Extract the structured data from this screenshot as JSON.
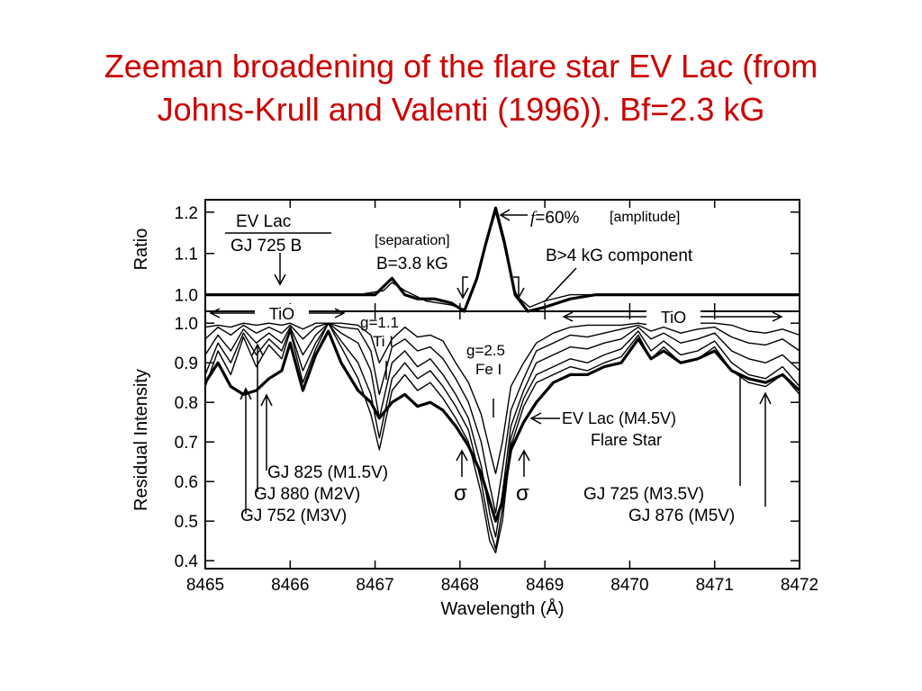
{
  "slide": {
    "title_line1": "Zeeman broadening of the flare star EV Lac (from",
    "title_line2": "Johns-Krull and Valenti (1996)). Bf=2.3 kG",
    "title_color": "#cc0000"
  },
  "chart_data": [
    {
      "type": "line",
      "panel": "top",
      "ylabel": "Ratio",
      "xlim": [
        8465,
        8472
      ],
      "ylim": [
        0.96,
        1.23
      ],
      "yticks": [
        "1.0",
        "1.1",
        "1.2"
      ],
      "ytick_values": [
        1.0,
        1.1,
        1.2
      ],
      "legend": {
        "numerator": "EV Lac",
        "denominator": "GJ 725 B"
      },
      "series": [
        {
          "x": [
            8465.0,
            8465.5,
            8466.0,
            8466.5,
            8467.0,
            8467.1,
            8467.2,
            8467.35,
            8467.5,
            8467.7,
            8467.9,
            8468.05,
            8468.2,
            8468.3,
            8468.42,
            8468.52,
            8468.65,
            8468.8,
            8469.0,
            8469.3,
            8469.6,
            8470.0,
            8470.5,
            8471.0,
            8471.5,
            8472.0
          ],
          "y": [
            1.0,
            1.0,
            1.0,
            1.0,
            1.0,
            1.02,
            1.04,
            1.0,
            0.99,
            0.99,
            0.98,
            0.955,
            1.04,
            1.12,
            1.21,
            1.13,
            1.0,
            0.955,
            0.97,
            0.99,
            1.0,
            1.0,
            1.0,
            1.0,
            1.0,
            1.0
          ]
        },
        {
          "x": [
            8465.0,
            8466.0,
            8466.8,
            8467.1,
            8467.2,
            8467.35,
            8467.6,
            8467.9,
            8468.05,
            8468.2,
            8468.3,
            8468.42,
            8468.52,
            8468.65,
            8468.82,
            8469.0,
            8469.3,
            8470.0,
            8472.0
          ],
          "y": [
            1.0,
            1.0,
            1.0,
            1.01,
            1.03,
            1.01,
            0.985,
            0.975,
            0.965,
            1.04,
            1.12,
            1.2,
            1.12,
            1.0,
            0.97,
            0.985,
            1.0,
            1.0,
            1.0
          ]
        }
      ],
      "annotations": [
        {
          "text": "[separation]"
        },
        {
          "text": "B=3.8 kG"
        },
        {
          "text": "=60%",
          "italic_prefix": "f"
        },
        {
          "text": "[amplitude]"
        },
        {
          "text": "B>4 kG component"
        }
      ]
    },
    {
      "type": "line",
      "panel": "bottom",
      "xlabel": "Wavelength  (Å)",
      "ylabel": "Residual Intensity",
      "xlim": [
        8465,
        8472
      ],
      "ylim": [
        0.38,
        1.03
      ],
      "xticks": [
        "8465",
        "8466",
        "8467",
        "8468",
        "8469",
        "8470",
        "8471",
        "8472"
      ],
      "xtick_values": [
        8465,
        8466,
        8467,
        8468,
        8469,
        8470,
        8471,
        8472
      ],
      "yticks": [
        "0.4",
        "0.5",
        "0.6",
        "0.7",
        "0.8",
        "0.9",
        "1.0"
      ],
      "ytick_values": [
        0.4,
        0.5,
        0.6,
        0.7,
        0.8,
        0.9,
        1.0
      ],
      "series": [
        {
          "name": "GJ 825 (M1.5V)",
          "x": [
            8465.0,
            8465.15,
            8465.3,
            8465.45,
            8465.6,
            8465.75,
            8465.9,
            8466.0,
            8466.15,
            8466.3,
            8466.45,
            8466.6,
            8466.8,
            8466.95,
            8467.05,
            8467.2,
            8467.35,
            8467.5,
            8467.65,
            8467.8,
            8467.95,
            8468.1,
            8468.25,
            8468.35,
            8468.42,
            8468.5,
            8468.6,
            8468.75,
            8468.9,
            8469.1,
            8469.3,
            8469.5,
            8469.7,
            8469.9,
            8470.1,
            8470.25,
            8470.4,
            8470.6,
            8470.8,
            8471.0,
            8471.2,
            8471.4,
            8471.6,
            8471.8,
            8472.0
          ],
          "y": [
            0.99,
            0.995,
            0.99,
            1.0,
            0.995,
            1.0,
            0.995,
            1.0,
            0.985,
            1.0,
            1.0,
            1.0,
            0.995,
            0.97,
            0.9,
            0.96,
            0.99,
            0.965,
            0.97,
            0.955,
            0.9,
            0.85,
            0.77,
            0.68,
            0.62,
            0.7,
            0.84,
            0.9,
            0.95,
            0.975,
            0.99,
            0.995,
            0.995,
            0.995,
            1.0,
            0.995,
            1.0,
            0.995,
            1.0,
            1.0,
            0.995,
            0.98,
            0.975,
            0.985,
            0.97
          ]
        },
        {
          "name": "GJ 880 (M2V)",
          "x": [
            8465.0,
            8465.15,
            8465.3,
            8465.45,
            8465.6,
            8465.75,
            8465.9,
            8466.0,
            8466.15,
            8466.3,
            8466.45,
            8466.6,
            8466.8,
            8466.95,
            8467.05,
            8467.2,
            8467.35,
            8467.5,
            8467.65,
            8467.8,
            8467.95,
            8468.1,
            8468.25,
            8468.35,
            8468.42,
            8468.5,
            8468.6,
            8468.75,
            8468.9,
            8469.1,
            8469.3,
            8469.5,
            8469.7,
            8469.9,
            8470.1,
            8470.25,
            8470.4,
            8470.6,
            8470.8,
            8471.0,
            8471.2,
            8471.4,
            8471.6,
            8471.8,
            8472.0
          ],
          "y": [
            0.96,
            0.99,
            0.97,
            0.995,
            0.975,
            0.99,
            0.975,
            0.995,
            0.96,
            0.99,
            1.0,
            0.99,
            0.985,
            0.93,
            0.82,
            0.94,
            0.96,
            0.93,
            0.94,
            0.91,
            0.86,
            0.8,
            0.7,
            0.59,
            0.52,
            0.63,
            0.78,
            0.86,
            0.93,
            0.95,
            0.97,
            0.965,
            0.975,
            0.985,
            0.995,
            0.98,
            0.99,
            0.975,
            0.985,
            0.99,
            0.965,
            0.95,
            0.945,
            0.96,
            0.93
          ]
        },
        {
          "name": "GJ 752 (M3V)",
          "x": [
            8465.0,
            8465.15,
            8465.3,
            8465.45,
            8465.6,
            8465.75,
            8465.9,
            8466.0,
            8466.15,
            8466.3,
            8466.45,
            8466.6,
            8466.8,
            8466.95,
            8467.05,
            8467.2,
            8467.35,
            8467.5,
            8467.65,
            8467.8,
            8467.95,
            8468.1,
            8468.25,
            8468.35,
            8468.42,
            8468.5,
            8468.6,
            8468.75,
            8468.9,
            8469.1,
            8469.3,
            8469.5,
            8469.7,
            8469.9,
            8470.1,
            8470.25,
            8470.4,
            8470.6,
            8470.8,
            8471.0,
            8471.2,
            8471.4,
            8471.6,
            8471.8,
            8472.0
          ],
          "y": [
            0.92,
            0.97,
            0.93,
            0.985,
            0.95,
            0.975,
            0.95,
            0.99,
            0.92,
            0.97,
            1.0,
            0.975,
            0.95,
            0.88,
            0.76,
            0.9,
            0.93,
            0.89,
            0.91,
            0.87,
            0.82,
            0.76,
            0.64,
            0.52,
            0.46,
            0.57,
            0.74,
            0.83,
            0.9,
            0.92,
            0.94,
            0.935,
            0.95,
            0.96,
            0.99,
            0.96,
            0.975,
            0.95,
            0.96,
            0.975,
            0.93,
            0.91,
            0.9,
            0.92,
            0.88
          ]
        },
        {
          "name": "GJ 725 (M3.5V)",
          "x": [
            8465.0,
            8465.15,
            8465.3,
            8465.45,
            8465.6,
            8465.75,
            8465.9,
            8466.0,
            8466.15,
            8466.3,
            8466.45,
            8466.6,
            8466.8,
            8466.95,
            8467.05,
            8467.2,
            8467.35,
            8467.5,
            8467.65,
            8467.8,
            8467.95,
            8468.1,
            8468.25,
            8468.35,
            8468.42,
            8468.5,
            8468.6,
            8468.75,
            8468.9,
            8469.1,
            8469.3,
            8469.5,
            8469.7,
            8469.9,
            8470.1,
            8470.25,
            8470.4,
            8470.6,
            8470.8,
            8471.0,
            8471.2,
            8471.4,
            8471.6,
            8471.8,
            8472.0
          ],
          "y": [
            0.87,
            0.95,
            0.9,
            0.975,
            0.92,
            0.96,
            0.93,
            0.985,
            0.88,
            0.95,
            1.0,
            0.955,
            0.9,
            0.82,
            0.71,
            0.86,
            0.9,
            0.86,
            0.88,
            0.84,
            0.79,
            0.73,
            0.6,
            0.48,
            0.43,
            0.53,
            0.71,
            0.81,
            0.87,
            0.89,
            0.91,
            0.9,
            0.92,
            0.935,
            0.98,
            0.93,
            0.955,
            0.92,
            0.93,
            0.955,
            0.9,
            0.87,
            0.86,
            0.89,
            0.84
          ]
        },
        {
          "name": "GJ 876 (M5V)",
          "x": [
            8465.0,
            8465.15,
            8465.3,
            8465.45,
            8465.6,
            8465.75,
            8465.9,
            8466.0,
            8466.15,
            8466.3,
            8466.45,
            8466.6,
            8466.8,
            8466.95,
            8467.05,
            8467.2,
            8467.35,
            8467.5,
            8467.65,
            8467.8,
            8467.95,
            8468.1,
            8468.25,
            8468.35,
            8468.42,
            8468.5,
            8468.6,
            8468.75,
            8468.9,
            8469.1,
            8469.3,
            8469.5,
            8469.7,
            8469.9,
            8470.1,
            8470.25,
            8470.4,
            8470.6,
            8470.8,
            8471.0,
            8471.2,
            8471.4,
            8471.6,
            8471.8,
            8472.0
          ],
          "y": [
            0.84,
            0.93,
            0.87,
            0.965,
            0.89,
            0.945,
            0.91,
            0.98,
            0.85,
            0.935,
            1.0,
            0.94,
            0.86,
            0.77,
            0.68,
            0.83,
            0.87,
            0.83,
            0.85,
            0.81,
            0.76,
            0.7,
            0.57,
            0.45,
            0.42,
            0.5,
            0.69,
            0.79,
            0.85,
            0.87,
            0.89,
            0.88,
            0.9,
            0.915,
            0.97,
            0.91,
            0.94,
            0.9,
            0.91,
            0.94,
            0.88,
            0.85,
            0.84,
            0.87,
            0.82
          ]
        },
        {
          "name": "EV Lac (M4.5V) Flare Star",
          "x": [
            8465.0,
            8465.15,
            8465.3,
            8465.45,
            8465.6,
            8465.75,
            8465.9,
            8466.0,
            8466.15,
            8466.3,
            8466.45,
            8466.6,
            8466.8,
            8466.95,
            8467.05,
            8467.2,
            8467.35,
            8467.5,
            8467.65,
            8467.8,
            8467.95,
            8468.1,
            8468.25,
            8468.35,
            8468.42,
            8468.5,
            8468.6,
            8468.75,
            8468.9,
            8469.1,
            8469.3,
            8469.5,
            8469.7,
            8469.9,
            8470.1,
            8470.25,
            8470.4,
            8470.6,
            8470.8,
            8471.0,
            8471.2,
            8471.4,
            8471.6,
            8471.8,
            8472.0
          ],
          "y": [
            0.85,
            0.9,
            0.84,
            0.82,
            0.83,
            0.86,
            0.88,
            0.95,
            0.83,
            0.92,
            0.98,
            0.9,
            0.83,
            0.8,
            0.76,
            0.8,
            0.82,
            0.79,
            0.8,
            0.78,
            0.74,
            0.69,
            0.62,
            0.55,
            0.5,
            0.55,
            0.68,
            0.75,
            0.8,
            0.85,
            0.87,
            0.87,
            0.89,
            0.9,
            0.96,
            0.91,
            0.93,
            0.9,
            0.91,
            0.93,
            0.88,
            0.86,
            0.85,
            0.87,
            0.83
          ]
        }
      ],
      "annotations": [
        {
          "text": "TiO"
        },
        {
          "text": "TiO"
        },
        {
          "text": "g=1.1"
        },
        {
          "text": "Ti I"
        },
        {
          "text": "g=2.5"
        },
        {
          "text": "Fe I"
        },
        {
          "text": "σ"
        },
        {
          "text": "σ"
        },
        {
          "text": "EV Lac (M4.5V)"
        },
        {
          "text": "Flare Star"
        },
        {
          "text": "GJ 825 (M1.5V)"
        },
        {
          "text": "GJ 880 (M2V)"
        },
        {
          "text": "GJ 752 (M3V)"
        },
        {
          "text": "GJ 725 (M3.5V)"
        },
        {
          "text": "GJ 876 (M5V)"
        }
      ]
    }
  ]
}
